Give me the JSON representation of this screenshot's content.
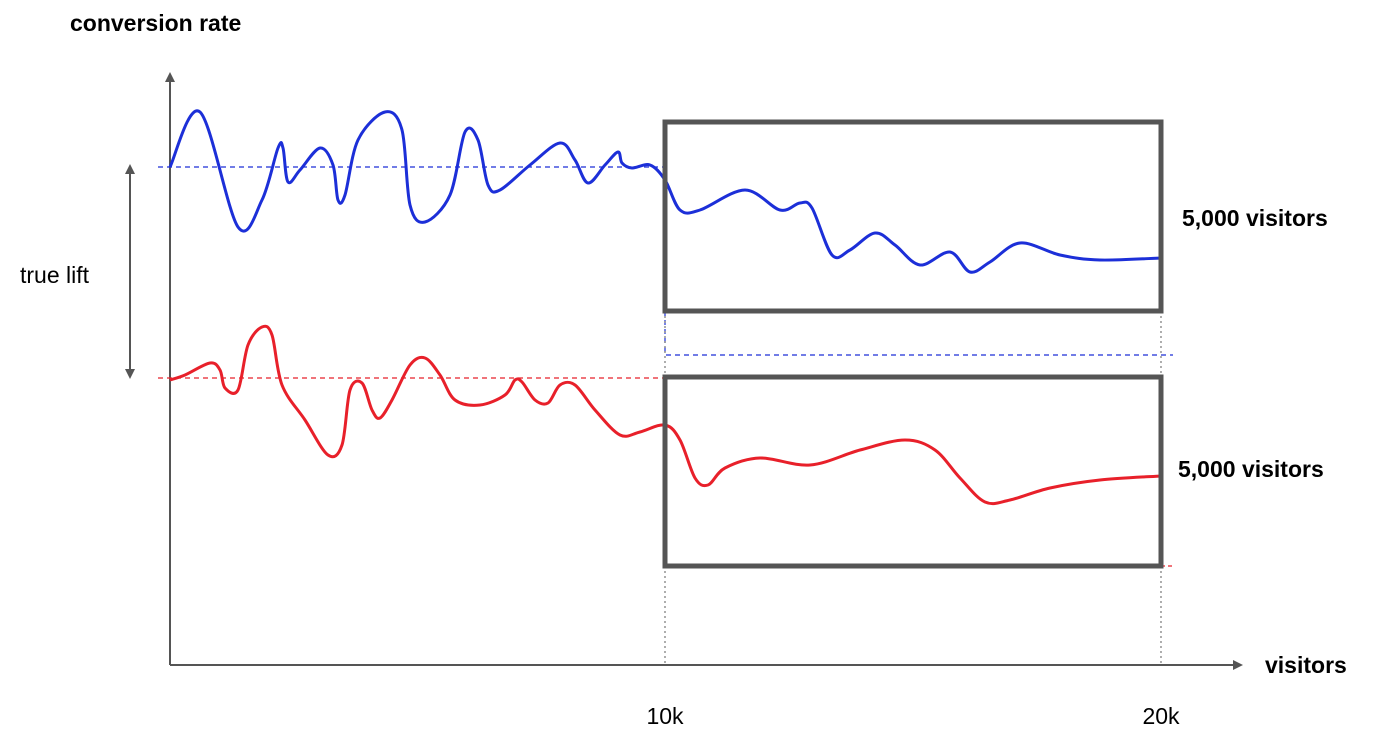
{
  "y_axis_label": "conversion rate",
  "x_axis_label": "visitors",
  "lift_label": "true lift",
  "boxes": [
    {
      "label": "5,000 visitors"
    },
    {
      "label": "5,000 visitors"
    }
  ],
  "x_ticks": [
    "10k",
    "20k"
  ]
}
